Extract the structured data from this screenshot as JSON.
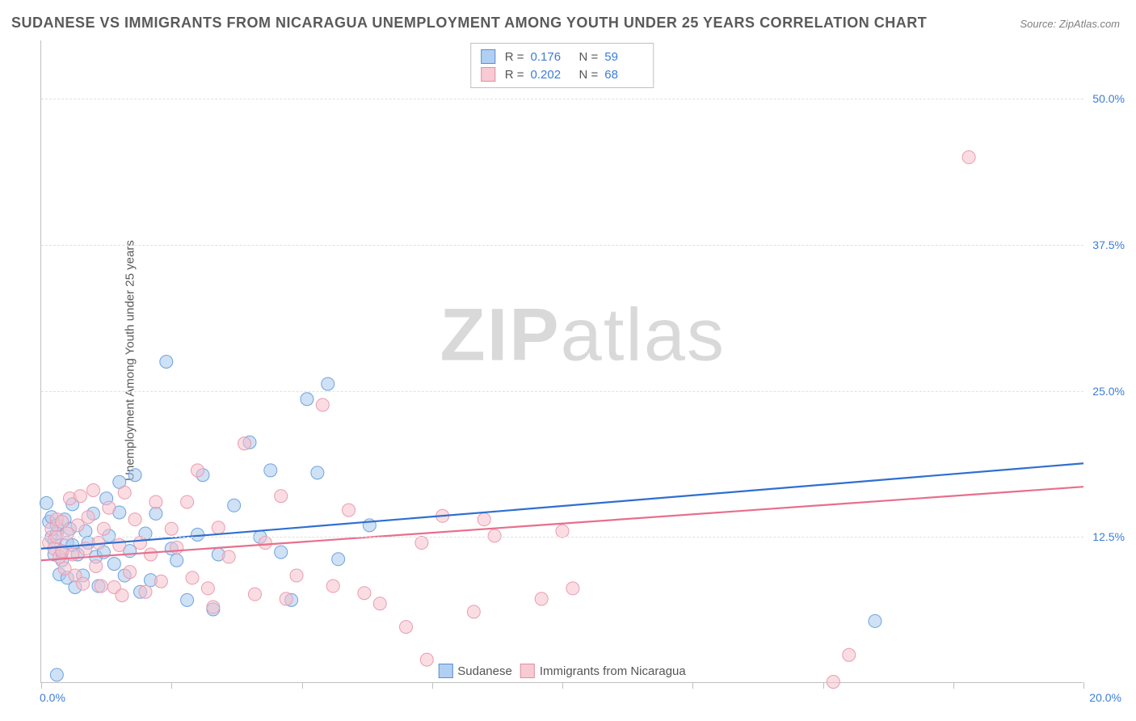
{
  "title": "SUDANESE VS IMMIGRANTS FROM NICARAGUA UNEMPLOYMENT AMONG YOUTH UNDER 25 YEARS CORRELATION CHART",
  "source": "Source: ZipAtlas.com",
  "watermark": {
    "bold": "ZIP",
    "rest": "atlas"
  },
  "chart": {
    "type": "scatter",
    "ylabel": "Unemployment Among Youth under 25 years",
    "xlim": [
      0,
      20
    ],
    "ylim": [
      0,
      55
    ],
    "x_ticks": [
      0,
      2.5,
      5,
      7.5,
      10,
      12.5,
      15,
      17.5,
      20
    ],
    "x_tick_labels": {
      "0": "0.0%",
      "20": "20.0%"
    },
    "y_ticks": [
      12.5,
      25.0,
      37.5,
      50.0
    ],
    "y_tick_labels": {
      "12.5": "12.5%",
      "25": "25.0%",
      "37.5": "37.5%",
      "50": "50.0%"
    },
    "grid_color": "#e0e0e0",
    "axis_color": "#c0c0c0",
    "tick_label_color": "#3b7dd8",
    "background_color": "#ffffff",
    "point_radius": 8,
    "point_opacity": 0.55,
    "line_width": 2.2,
    "series": [
      {
        "name": "Sudanese",
        "color_fill": "#a7c8ec",
        "color_stroke": "#6fa3dd",
        "line_color": "#2f6fd0",
        "R": "0.176",
        "N": "59",
        "trend": {
          "x1": 0,
          "y1": 11.5,
          "x2": 20,
          "y2": 18.8
        },
        "points": [
          [
            0.1,
            15.4
          ],
          [
            0.15,
            13.8
          ],
          [
            0.2,
            12.5
          ],
          [
            0.2,
            14.2
          ],
          [
            0.25,
            11.0
          ],
          [
            0.25,
            12.2
          ],
          [
            0.3,
            12.8
          ],
          [
            0.3,
            13.5
          ],
          [
            0.35,
            9.3
          ],
          [
            0.4,
            11.2
          ],
          [
            0.4,
            10.5
          ],
          [
            0.45,
            14.0
          ],
          [
            0.5,
            12.0
          ],
          [
            0.5,
            9.0
          ],
          [
            0.55,
            13.2
          ],
          [
            0.6,
            11.8
          ],
          [
            0.65,
            8.2
          ],
          [
            0.7,
            11.0
          ],
          [
            0.8,
            9.2
          ],
          [
            0.85,
            13.0
          ],
          [
            0.9,
            12.0
          ],
          [
            1.0,
            14.5
          ],
          [
            1.05,
            10.8
          ],
          [
            1.1,
            8.3
          ],
          [
            1.2,
            11.2
          ],
          [
            1.25,
            15.8
          ],
          [
            1.3,
            12.6
          ],
          [
            1.4,
            10.2
          ],
          [
            1.5,
            14.6
          ],
          [
            1.5,
            17.2
          ],
          [
            1.6,
            9.2
          ],
          [
            1.7,
            11.3
          ],
          [
            1.8,
            17.8
          ],
          [
            1.9,
            7.8
          ],
          [
            2.0,
            12.8
          ],
          [
            2.1,
            8.8
          ],
          [
            2.2,
            14.5
          ],
          [
            2.4,
            27.5
          ],
          [
            2.5,
            11.5
          ],
          [
            2.6,
            10.5
          ],
          [
            2.8,
            7.1
          ],
          [
            3.0,
            12.7
          ],
          [
            3.1,
            17.8
          ],
          [
            3.3,
            6.3
          ],
          [
            3.4,
            11.0
          ],
          [
            3.7,
            15.2
          ],
          [
            4.0,
            20.6
          ],
          [
            4.2,
            12.5
          ],
          [
            4.4,
            18.2
          ],
          [
            4.6,
            11.2
          ],
          [
            4.8,
            7.1
          ],
          [
            5.1,
            24.3
          ],
          [
            5.3,
            18.0
          ],
          [
            5.5,
            25.6
          ],
          [
            5.7,
            10.6
          ],
          [
            6.3,
            13.5
          ],
          [
            0.3,
            0.7
          ],
          [
            16.0,
            5.3
          ],
          [
            0.6,
            15.3
          ]
        ]
      },
      {
        "name": "Immigrants from Nicaragua",
        "color_fill": "#f6c1cc",
        "color_stroke": "#eb9bb0",
        "line_color": "#e76f8c",
        "R": "0.202",
        "N": "68",
        "trend": {
          "x1": 0,
          "y1": 10.5,
          "x2": 20,
          "y2": 16.8
        },
        "points": [
          [
            0.15,
            12.0
          ],
          [
            0.2,
            13.2
          ],
          [
            0.25,
            11.5
          ],
          [
            0.3,
            12.5
          ],
          [
            0.3,
            14.0
          ],
          [
            0.35,
            10.8
          ],
          [
            0.4,
            13.8
          ],
          [
            0.4,
            11.3
          ],
          [
            0.45,
            9.8
          ],
          [
            0.5,
            12.8
          ],
          [
            0.55,
            15.8
          ],
          [
            0.6,
            11.0
          ],
          [
            0.65,
            9.2
          ],
          [
            0.7,
            13.5
          ],
          [
            0.75,
            16.0
          ],
          [
            0.8,
            8.5
          ],
          [
            0.85,
            11.5
          ],
          [
            0.9,
            14.2
          ],
          [
            1.0,
            16.5
          ],
          [
            1.05,
            10.0
          ],
          [
            1.1,
            12.0
          ],
          [
            1.15,
            8.3
          ],
          [
            1.2,
            13.2
          ],
          [
            1.3,
            15.0
          ],
          [
            1.4,
            8.2
          ],
          [
            1.5,
            11.8
          ],
          [
            1.55,
            7.5
          ],
          [
            1.6,
            16.3
          ],
          [
            1.7,
            9.5
          ],
          [
            1.8,
            14.0
          ],
          [
            1.9,
            12.0
          ],
          [
            2.0,
            7.8
          ],
          [
            2.1,
            11.0
          ],
          [
            2.2,
            15.5
          ],
          [
            2.3,
            8.7
          ],
          [
            2.5,
            13.2
          ],
          [
            2.6,
            11.6
          ],
          [
            2.8,
            15.5
          ],
          [
            2.9,
            9.0
          ],
          [
            3.0,
            18.2
          ],
          [
            3.2,
            8.1
          ],
          [
            3.4,
            13.3
          ],
          [
            3.6,
            10.8
          ],
          [
            3.9,
            20.5
          ],
          [
            4.1,
            7.6
          ],
          [
            4.3,
            12.0
          ],
          [
            4.6,
            16.0
          ],
          [
            4.9,
            9.2
          ],
          [
            5.4,
            23.8
          ],
          [
            5.6,
            8.3
          ],
          [
            5.9,
            14.8
          ],
          [
            6.2,
            7.7
          ],
          [
            6.5,
            6.8
          ],
          [
            7.0,
            4.8
          ],
          [
            7.3,
            12.0
          ],
          [
            7.4,
            2.0
          ],
          [
            7.7,
            14.3
          ],
          [
            8.3,
            6.1
          ],
          [
            8.5,
            14.0
          ],
          [
            8.7,
            12.6
          ],
          [
            9.6,
            7.2
          ],
          [
            10.0,
            13.0
          ],
          [
            10.2,
            8.1
          ],
          [
            15.2,
            0.1
          ],
          [
            15.5,
            2.4
          ],
          [
            17.8,
            45.0
          ],
          [
            4.7,
            7.2
          ],
          [
            3.3,
            6.5
          ]
        ]
      }
    ],
    "legend_top": [
      {
        "swatch": "blue",
        "R": "0.176",
        "N": "59"
      },
      {
        "swatch": "pink",
        "R": "0.202",
        "N": "68"
      }
    ],
    "legend_bottom": [
      {
        "swatch": "blue",
        "label": "Sudanese"
      },
      {
        "swatch": "pink",
        "label": "Immigrants from Nicaragua"
      }
    ]
  }
}
